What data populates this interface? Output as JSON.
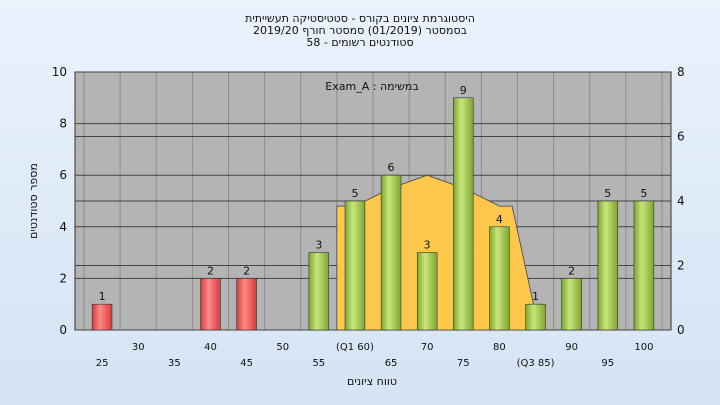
{
  "title_lines": [
    "היסטוגרמת ציונים בקורס - סטטיסטיקה תעשייתית",
    "בסמסטר  (01/2019)  סמסטר חורף 2019/20",
    "58 - סטודנטים רשומים"
  ],
  "chart_data": {
    "type": "bar",
    "annotation": "במשימה : Exam_A",
    "xlabel": "טווח ציונים",
    "ylabel": "מספר סטודנטים",
    "ylim": [
      0,
      10
    ],
    "y_ticks": [
      "0",
      "2",
      "4",
      "6",
      "8",
      "10"
    ],
    "y2lim": [
      0,
      8
    ],
    "y2_ticks": [
      "0",
      "2",
      "4",
      "6",
      "8"
    ],
    "grid": true,
    "x_ticks_row1": [
      "30",
      "40",
      "50",
      "(Q1 60)",
      "70",
      "80",
      "90",
      "100"
    ],
    "x_ticks_row2": [
      "25",
      "35",
      "45",
      "55",
      "65",
      "75",
      "(Q3 85)",
      "95"
    ],
    "categories": [
      "25",
      "30",
      "35",
      "40",
      "45",
      "50",
      "55",
      "60",
      "65",
      "70",
      "75",
      "80",
      "85",
      "90",
      "95",
      "100"
    ],
    "values": [
      1,
      0,
      0,
      2,
      2,
      0,
      3,
      5,
      6,
      3,
      9,
      4,
      1,
      2,
      5,
      5
    ],
    "bar_labels": [
      "1",
      "",
      "",
      "2",
      "2",
      "",
      "3",
      "5",
      "6",
      "3",
      "9",
      "4",
      "1",
      "2",
      "5",
      "5"
    ],
    "failing_color": "#d63a3a",
    "passing_color": "#9cc24a",
    "area_color": "#ffc84a",
    "area_series": {
      "categories": [
        "60",
        "65",
        "70",
        "75",
        "80"
      ],
      "values": [
        4.8,
        5.5,
        6,
        5.5,
        4.8
      ]
    }
  }
}
